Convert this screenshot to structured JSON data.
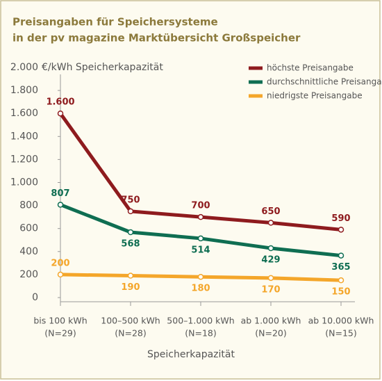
{
  "chart_data": {
    "type": "line",
    "title": "Preisangaben für Speichersysteme",
    "subtitle": "in der pv magazine Marktübersicht Großspeicher",
    "y_label": "€/kWh Speicherkapazität",
    "x_label": "Speicherkapazität",
    "categories": [
      [
        "bis 100 kWh",
        "(N=29)"
      ],
      [
        "100–500 kWh",
        "(N=28)"
      ],
      [
        "500–1.000 kWh",
        "(N=18)"
      ],
      [
        "ab 1.000 kWh",
        "(N=20)"
      ],
      [
        "ab 10.000 kWh",
        "(N=15)"
      ]
    ],
    "series": [
      {
        "name": "höchste Preisangabe",
        "color": "#8e1b1e",
        "values": [
          1600,
          750,
          700,
          650,
          590
        ],
        "value_labels": [
          "1.600",
          "750",
          "700",
          "650",
          "590"
        ]
      },
      {
        "name": "durchschnittliche Preisangabe",
        "color": "#0f6e52",
        "values": [
          807,
          568,
          514,
          429,
          365
        ]
      },
      {
        "name": "niedrigste Preisangabe",
        "color": "#f4a62a",
        "values": [
          200,
          190,
          180,
          170,
          150
        ]
      }
    ],
    "ylim": [
      0,
      2000
    ],
    "yticks": [
      0,
      200,
      400,
      600,
      800,
      {
        "value": 1000,
        "label": "1.000"
      },
      {
        "value": 1200,
        "label": "1.200"
      },
      {
        "value": 1400,
        "label": "1.400"
      },
      {
        "value": 1600,
        "label": "1.600"
      },
      {
        "value": 1800,
        "label": "1.800"
      },
      {
        "value": 2000,
        "label": "2.000"
      }
    ],
    "legend": "top-right"
  }
}
